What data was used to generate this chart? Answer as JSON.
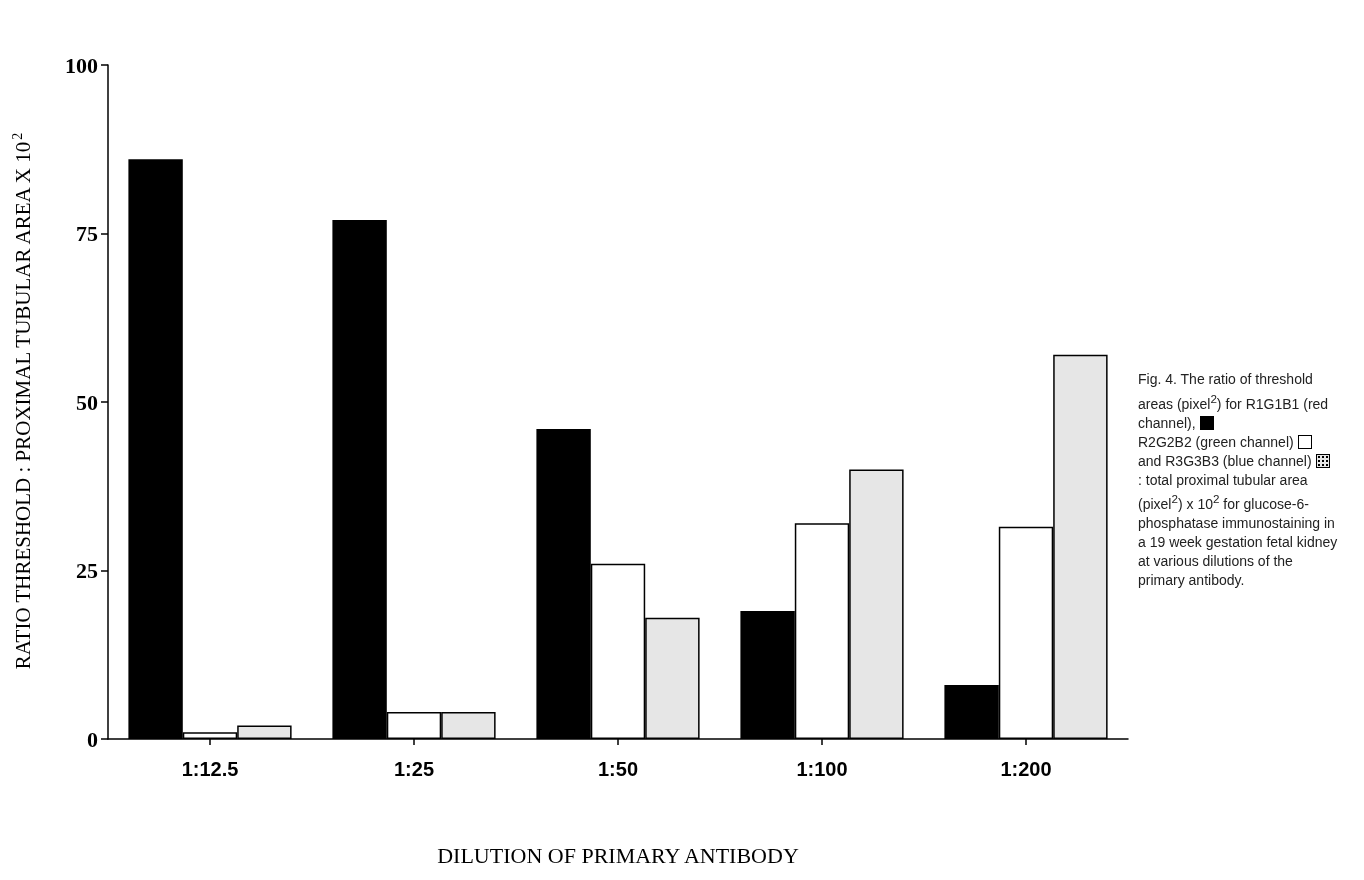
{
  "chart_data": {
    "type": "bar",
    "xlabel": "DILUTION OF PRIMARY ANTIBODY",
    "ylabel": "RATIO THRESHOLD : PROXIMAL TUBULAR AREA X 10$^{2}$",
    "categories": [
      "1:12.5",
      "1:25",
      "1:50",
      "1:100",
      "1:200"
    ],
    "series": [
      {
        "color": "#000000",
        "values": [
          86,
          77,
          46,
          19,
          8
        ]
      },
      {
        "color": "#ffffff",
        "values": [
          1,
          4,
          26,
          32,
          31.5
        ]
      },
      {
        "color": "#e6e6e6",
        "values": [
          2,
          4,
          18,
          40,
          57
        ]
      }
    ],
    "ylim": [
      0,
      100
    ],
    "yticks": [
      0,
      25,
      50,
      75,
      100
    ],
    "grid": false,
    "annotations": [
      "Fig. 4. The ratio of threshold areas (pixel$^{2}$) for R1G1B1 (red channel),",
      "R2G2B2 (green channel)",
      "and R3G3B3 (blue channel)",
      ": total proximal tubular area (pixel$^{2}$) x 10$^{2}$ for glucose-6-phosphatase immunostaining in a 19 week gestation fetal kidney at various dilutions of the primary antibody."
    ]
  }
}
